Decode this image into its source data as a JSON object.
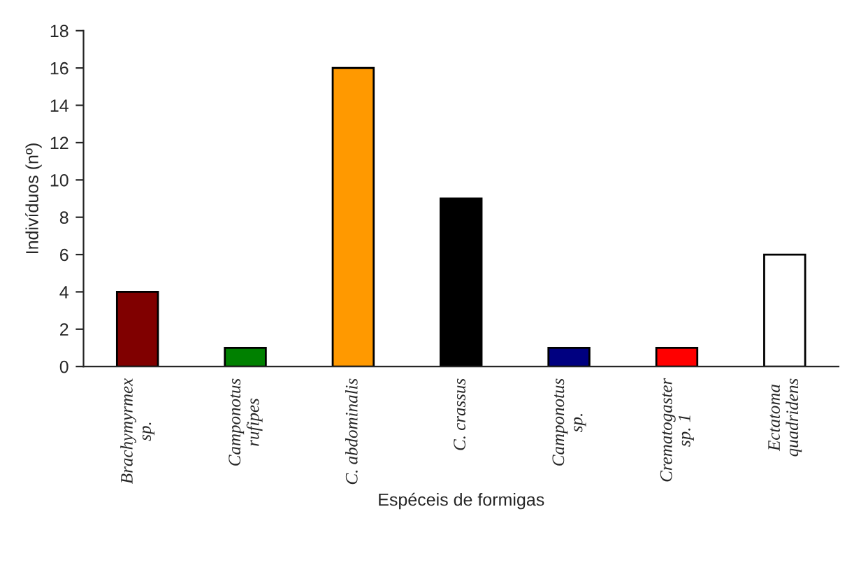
{
  "chart_data": {
    "type": "bar",
    "categories": [
      "Brachymyrmex\nsp.",
      "Camponotus\nrufipes",
      "C. abdominalis",
      "C. crassus",
      "Camponotus\nsp.",
      "Crematogaster\nsp. 1",
      "Ectatoma\nquadridens"
    ],
    "values": [
      4,
      1,
      16,
      9,
      1,
      1,
      6
    ],
    "colors": [
      "#800000",
      "#008000",
      "#ff9900",
      "#000000",
      "#000080",
      "#ff0000",
      "#ffffff"
    ],
    "xlabel": "Espéceis de formigas",
    "ylabel": "Indivíduos (nº)",
    "ylim": [
      0,
      18
    ],
    "yticks": [
      0,
      2,
      4,
      6,
      8,
      10,
      12,
      14,
      16,
      18
    ],
    "grid": false,
    "legend": false
  }
}
